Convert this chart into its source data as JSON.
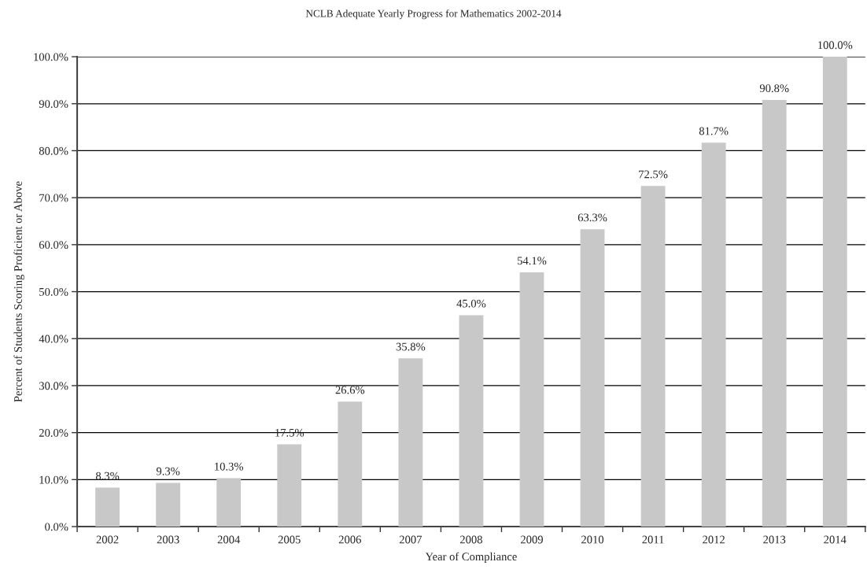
{
  "chart_data": {
    "type": "bar",
    "title": "NCLB Adequate Yearly Progress for Mathematics 2002-2014",
    "xlabel": "Year of Compliance",
    "ylabel": "Percent of Students Scoring Proficient or Above",
    "categories": [
      "2002",
      "2003",
      "2004",
      "2005",
      "2006",
      "2007",
      "2008",
      "2009",
      "2010",
      "2011",
      "2012",
      "2013",
      "2014"
    ],
    "values": [
      8.3,
      9.3,
      10.3,
      17.5,
      26.6,
      35.8,
      45.0,
      54.1,
      63.3,
      72.5,
      81.7,
      90.8,
      100.0
    ],
    "value_labels": [
      "8.3%",
      "9.3%",
      "10.3%",
      "17.5%",
      "26.6%",
      "35.8%",
      "45.0%",
      "54.1%",
      "63.3%",
      "72.5%",
      "81.7%",
      "90.8%",
      "100.0%"
    ],
    "color": "#c8c8c8",
    "ylim": [
      0,
      100
    ],
    "yticks": [
      {
        "value": 0,
        "label": "0.0%"
      },
      {
        "value": 10,
        "label": "10.0%"
      },
      {
        "value": 20,
        "label": "20.0%"
      },
      {
        "value": 30,
        "label": "30.0%"
      },
      {
        "value": 40,
        "label": "40.0%"
      },
      {
        "value": 50,
        "label": "50.0%"
      },
      {
        "value": 60,
        "label": "60.0%"
      },
      {
        "value": 70,
        "label": "70.0%"
      },
      {
        "value": 80,
        "label": "80.0%"
      },
      {
        "value": 90,
        "label": "90.0%"
      },
      {
        "value": 100,
        "label": "100.0%"
      }
    ],
    "grid": "y"
  }
}
